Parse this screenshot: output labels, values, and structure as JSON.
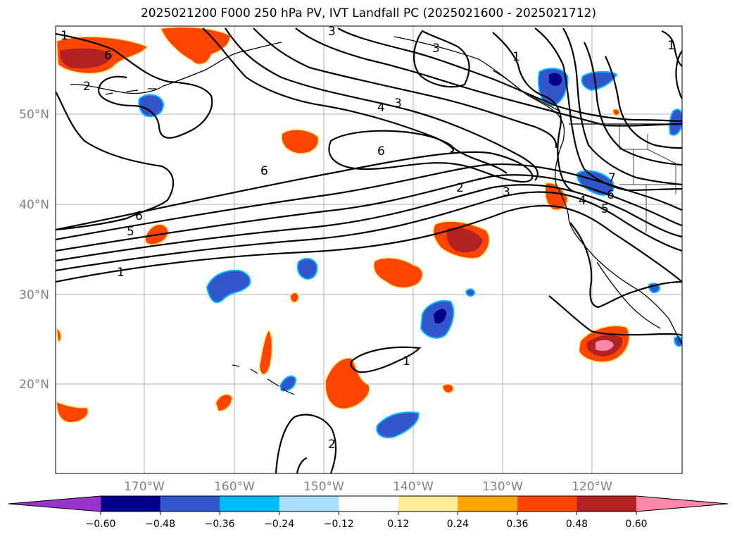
{
  "title": "2025021200 F000 250 hPa PV, IVT Landfall PC (2025021600 - 2025021712)",
  "map": {
    "lat_labels": [
      "50°N",
      "40°N",
      "30°N",
      "20°N"
    ],
    "lon_labels": [
      "170°W",
      "160°W",
      "150°W",
      "140°W",
      "130°W",
      "120°W"
    ],
    "contour_labels": [
      "1",
      "6",
      "2",
      "3",
      "3",
      "4",
      "3",
      "1",
      "6",
      "6",
      "6",
      "5",
      "1",
      "2",
      "3",
      "4",
      "5",
      "6",
      "7",
      "1",
      "1",
      "2"
    ]
  },
  "colorbar": {
    "ticks": [
      "−0.60",
      "−0.48",
      "−0.36",
      "−0.24",
      "−0.12",
      "0.12",
      "0.24",
      "0.36",
      "0.48",
      "0.60"
    ],
    "colors": [
      "#9933cc",
      "#00008b",
      "#3355cc",
      "#00bbff",
      "#aadfff",
      "#ffffff",
      "#ffee99",
      "#ffa500",
      "#ff4500",
      "#b22222",
      "#ff88aa"
    ]
  }
}
